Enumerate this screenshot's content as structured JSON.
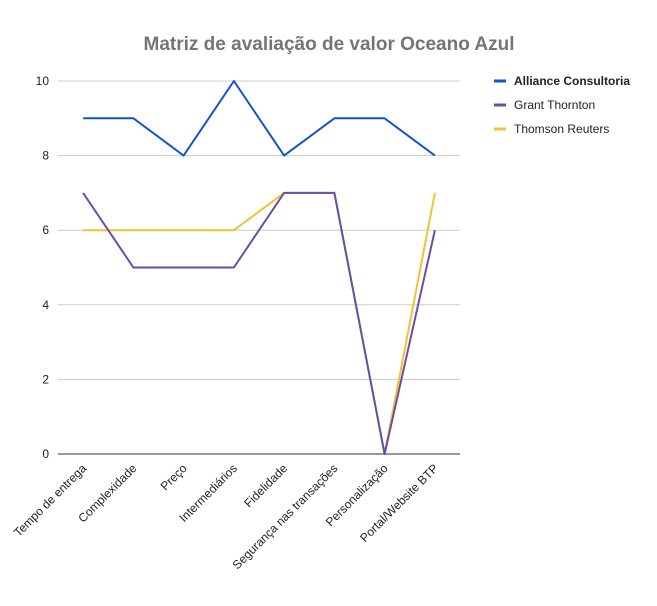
{
  "chart_data": {
    "type": "line",
    "title": "Matriz de avaliação de valor Oceano Azul",
    "xlabel": "",
    "ylabel": "",
    "ylim": [
      0,
      10
    ],
    "yticks": [
      0,
      2,
      4,
      6,
      8,
      10
    ],
    "grid": true,
    "legend_position": "right",
    "categories": [
      "Tempo de entrega",
      "Complexidade",
      "Preço",
      "Intermediários",
      "Fidelidade",
      "Segurança nas transações",
      "Personalização",
      "Portal/Website BTP"
    ],
    "series": [
      {
        "name": "Alliance Consultoria",
        "color": "#1155cc",
        "bold": true,
        "values": [
          9,
          9,
          8,
          10,
          8,
          9,
          9,
          8
        ]
      },
      {
        "name": " Grant Thornton",
        "color": "#674ea7",
        "bold": false,
        "values": [
          7,
          5,
          5,
          5,
          7,
          7,
          0,
          6
        ]
      },
      {
        "name": "Thomson Reuters",
        "color": "#f1c232",
        "bold": false,
        "values": [
          6,
          6,
          6,
          6,
          7,
          7,
          0,
          7
        ]
      }
    ]
  }
}
